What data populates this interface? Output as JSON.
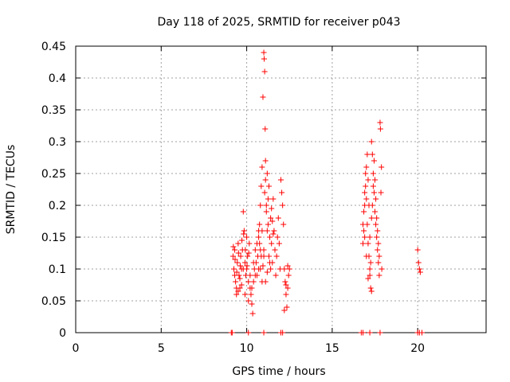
{
  "chart_data": {
    "type": "scatter",
    "title": "Day 118 of 2025, SRMTID for receiver p043",
    "xlabel": "GPS time / hours",
    "ylabel": "SRMTID / TECUs",
    "xlim": [
      0,
      24
    ],
    "ylim": [
      0,
      0.45
    ],
    "xticks": [
      0,
      5,
      10,
      15,
      20
    ],
    "xtick_labels": [
      "0",
      "5",
      "10",
      "15",
      "20"
    ],
    "yticks": [
      0,
      0.05,
      0.1,
      0.15,
      0.2,
      0.25,
      0.3,
      0.35,
      0.4,
      0.45
    ],
    "ytick_labels": [
      "0",
      "0.05",
      "0.1",
      "0.15",
      "0.2",
      "0.25",
      "0.3",
      "0.35",
      "0.4",
      "0.45"
    ],
    "grid": true,
    "marker": "+",
    "color": "#ff0000",
    "series": [
      {
        "name": "SRMTID",
        "points": [
          [
            9.1,
            0
          ],
          [
            9.15,
            0
          ],
          [
            10.1,
            0
          ],
          [
            11.0,
            0
          ],
          [
            12.0,
            0
          ],
          [
            12.1,
            0
          ],
          [
            16.7,
            0
          ],
          [
            16.8,
            0
          ],
          [
            17.2,
            0
          ],
          [
            17.8,
            0
          ],
          [
            20.0,
            0
          ],
          [
            20.1,
            0
          ],
          [
            20.25,
            0
          ],
          [
            9.2,
            0.12
          ],
          [
            9.25,
            0.1
          ],
          [
            9.3,
            0.13
          ],
          [
            9.35,
            0.08
          ],
          [
            9.4,
            0.06
          ],
          [
            9.45,
            0.11
          ],
          [
            9.5,
            0.14
          ],
          [
            9.55,
            0.09
          ],
          [
            9.6,
            0.07
          ],
          [
            9.65,
            0.12
          ],
          [
            9.7,
            0.1
          ],
          [
            9.75,
            0.13
          ],
          [
            9.8,
            0.19
          ],
          [
            9.85,
            0.16
          ],
          [
            9.9,
            0.11
          ],
          [
            9.95,
            0.09
          ],
          [
            10.0,
            0.15
          ],
          [
            10.05,
            0.12
          ],
          [
            10.1,
            0.08
          ],
          [
            10.15,
            0.14
          ],
          [
            9.3,
            0.09
          ],
          [
            9.4,
            0.07
          ],
          [
            9.5,
            0.065
          ],
          [
            9.6,
            0.085
          ],
          [
            9.7,
            0.075
          ],
          [
            9.8,
            0.1
          ],
          [
            9.9,
            0.06
          ],
          [
            10.0,
            0.1
          ],
          [
            10.1,
            0.05
          ],
          [
            10.2,
            0.09
          ],
          [
            9.22,
            0.135
          ],
          [
            9.32,
            0.115
          ],
          [
            9.42,
            0.095
          ],
          [
            9.52,
            0.125
          ],
          [
            9.62,
            0.105
          ],
          [
            9.72,
            0.145
          ],
          [
            9.82,
            0.155
          ],
          [
            9.92,
            0.13
          ],
          [
            10.02,
            0.105
          ],
          [
            10.12,
            0.125
          ],
          [
            10.2,
            0.07
          ],
          [
            10.25,
            0.06
          ],
          [
            10.3,
            0.045
          ],
          [
            10.35,
            0.03
          ],
          [
            10.4,
            0.08
          ],
          [
            10.45,
            0.1
          ],
          [
            10.5,
            0.13
          ],
          [
            10.55,
            0.11
          ],
          [
            10.6,
            0.09
          ],
          [
            10.65,
            0.12
          ],
          [
            10.7,
            0.15
          ],
          [
            10.75,
            0.17
          ],
          [
            10.8,
            0.2
          ],
          [
            10.85,
            0.23
          ],
          [
            10.9,
            0.26
          ],
          [
            10.95,
            0.37
          ],
          [
            11.0,
            0.44
          ],
          [
            11.02,
            0.43
          ],
          [
            11.05,
            0.41
          ],
          [
            11.08,
            0.32
          ],
          [
            10.7,
            0.16
          ],
          [
            10.75,
            0.14
          ],
          [
            10.8,
            0.1
          ],
          [
            10.85,
            0.12
          ],
          [
            10.9,
            0.08
          ],
          [
            10.95,
            0.105
          ],
          [
            11.0,
            0.13
          ],
          [
            11.05,
            0.22
          ],
          [
            11.1,
            0.27
          ],
          [
            11.15,
            0.2
          ],
          [
            11.2,
            0.25
          ],
          [
            11.25,
            0.17
          ],
          [
            11.3,
            0.12
          ],
          [
            11.35,
            0.15
          ],
          [
            11.4,
            0.18
          ],
          [
            11.45,
            0.14
          ],
          [
            11.5,
            0.11
          ],
          [
            11.55,
            0.21
          ],
          [
            11.6,
            0.16
          ],
          [
            11.65,
            0.13
          ],
          [
            11.7,
            0.09
          ],
          [
            11.75,
            0.12
          ],
          [
            11.8,
            0.15
          ],
          [
            11.85,
            0.18
          ],
          [
            11.9,
            0.14
          ],
          [
            11.95,
            0.1
          ],
          [
            12.0,
            0.24
          ],
          [
            12.05,
            0.22
          ],
          [
            12.1,
            0.2
          ],
          [
            12.15,
            0.17
          ],
          [
            11.1,
            0.24
          ],
          [
            11.15,
            0.19
          ],
          [
            11.2,
            0.16
          ],
          [
            11.25,
            0.21
          ],
          [
            11.3,
            0.23
          ],
          [
            11.35,
            0.11
          ],
          [
            11.4,
            0.1
          ],
          [
            11.45,
            0.195
          ],
          [
            11.5,
            0.175
          ],
          [
            11.55,
            0.155
          ],
          [
            12.2,
            0.1
          ],
          [
            12.25,
            0.08
          ],
          [
            12.3,
            0.06
          ],
          [
            12.35,
            0.04
          ],
          [
            12.4,
            0.07
          ],
          [
            12.45,
            0.09
          ],
          [
            12.5,
            0.1
          ],
          [
            12.2,
            0.035
          ],
          [
            12.3,
            0.075
          ],
          [
            12.4,
            0.105
          ],
          [
            10.3,
            0.07
          ],
          [
            10.4,
            0.11
          ],
          [
            10.5,
            0.09
          ],
          [
            10.6,
            0.14
          ],
          [
            10.7,
            0.1
          ],
          [
            10.8,
            0.13
          ],
          [
            10.9,
            0.16
          ],
          [
            11.0,
            0.12
          ],
          [
            11.1,
            0.08
          ],
          [
            11.2,
            0.095
          ],
          [
            16.8,
            0.17
          ],
          [
            16.85,
            0.19
          ],
          [
            16.9,
            0.22
          ],
          [
            16.95,
            0.25
          ],
          [
            17.0,
            0.21
          ],
          [
            17.05,
            0.17
          ],
          [
            17.1,
            0.14
          ],
          [
            17.15,
            0.12
          ],
          [
            17.2,
            0.09
          ],
          [
            17.25,
            0.07
          ],
          [
            16.8,
            0.14
          ],
          [
            16.85,
            0.16
          ],
          [
            16.9,
            0.2
          ],
          [
            16.95,
            0.23
          ],
          [
            17.0,
            0.26
          ],
          [
            17.05,
            0.28
          ],
          [
            17.1,
            0.24
          ],
          [
            17.15,
            0.2
          ],
          [
            17.2,
            0.15
          ],
          [
            17.25,
            0.11
          ],
          [
            17.3,
            0.3
          ],
          [
            17.35,
            0.28
          ],
          [
            17.4,
            0.25
          ],
          [
            17.45,
            0.22
          ],
          [
            17.5,
            0.19
          ],
          [
            17.55,
            0.17
          ],
          [
            17.6,
            0.15
          ],
          [
            17.65,
            0.13
          ],
          [
            17.7,
            0.11
          ],
          [
            17.75,
            0.09
          ],
          [
            17.3,
            0.18
          ],
          [
            17.35,
            0.2
          ],
          [
            17.4,
            0.23
          ],
          [
            17.45,
            0.27
          ],
          [
            17.5,
            0.24
          ],
          [
            17.55,
            0.21
          ],
          [
            17.6,
            0.18
          ],
          [
            17.65,
            0.16
          ],
          [
            17.7,
            0.14
          ],
          [
            17.75,
            0.12
          ],
          [
            17.8,
            0.33
          ],
          [
            17.82,
            0.32
          ],
          [
            17.85,
            0.22
          ],
          [
            17.88,
            0.26
          ],
          [
            17.9,
            0.1
          ],
          [
            17.3,
            0.065
          ],
          [
            17.2,
            0.1
          ],
          [
            17.1,
            0.085
          ],
          [
            17.0,
            0.12
          ],
          [
            16.9,
            0.15
          ],
          [
            20.0,
            0.13
          ],
          [
            20.05,
            0.11
          ],
          [
            20.1,
            0.1
          ],
          [
            20.15,
            0.095
          ]
        ]
      }
    ]
  }
}
